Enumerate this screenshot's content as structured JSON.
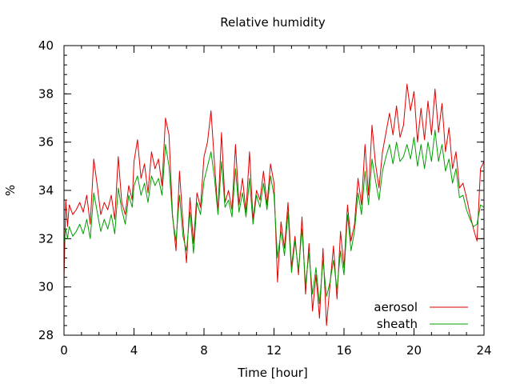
{
  "chart_data": {
    "type": "line",
    "title": "Relative humidity",
    "xlabel": "Time [hour]",
    "ylabel": "%",
    "xlim": [
      0,
      24
    ],
    "ylim": [
      28,
      40
    ],
    "xticks": [
      0,
      4,
      8,
      12,
      16,
      20,
      24
    ],
    "yticks": [
      28,
      30,
      32,
      34,
      36,
      38,
      40
    ],
    "grid": false,
    "legend_position": "bottom-right",
    "series": [
      {
        "name": "aerosol",
        "color": "#e00000",
        "x": [
          0.0,
          0.1,
          0.2,
          0.3,
          0.5,
          0.7,
          0.9,
          1.1,
          1.3,
          1.5,
          1.7,
          1.9,
          2.1,
          2.3,
          2.5,
          2.7,
          2.9,
          3.1,
          3.3,
          3.5,
          3.7,
          3.9,
          4.0,
          4.2,
          4.4,
          4.6,
          4.8,
          5.0,
          5.2,
          5.4,
          5.6,
          5.8,
          6.0,
          6.2,
          6.4,
          6.6,
          6.8,
          7.0,
          7.2,
          7.4,
          7.6,
          7.8,
          8.0,
          8.2,
          8.4,
          8.6,
          8.8,
          9.0,
          9.2,
          9.4,
          9.6,
          9.8,
          10.0,
          10.2,
          10.4,
          10.6,
          10.8,
          11.0,
          11.2,
          11.4,
          11.6,
          11.8,
          12.0,
          12.2,
          12.4,
          12.6,
          12.8,
          13.0,
          13.2,
          13.4,
          13.6,
          13.8,
          14.0,
          14.2,
          14.4,
          14.6,
          14.8,
          15.0,
          15.2,
          15.4,
          15.6,
          15.8,
          16.0,
          16.2,
          16.4,
          16.6,
          16.8,
          17.0,
          17.2,
          17.4,
          17.6,
          17.8,
          18.0,
          18.2,
          18.4,
          18.6,
          18.8,
          19.0,
          19.2,
          19.4,
          19.6,
          19.8,
          20.0,
          20.2,
          20.4,
          20.6,
          20.8,
          21.0,
          21.2,
          21.4,
          21.6,
          21.8,
          22.0,
          22.2,
          22.4,
          22.6,
          22.8,
          23.0,
          23.2,
          23.4,
          23.6,
          23.8,
          24.0
        ],
        "values": [
          30.3,
          33.6,
          32.5,
          33.4,
          33.0,
          33.2,
          33.5,
          33.1,
          33.8,
          32.6,
          35.3,
          34.2,
          33.0,
          33.5,
          33.2,
          33.8,
          32.8,
          35.4,
          33.5,
          33.0,
          34.2,
          33.6,
          35.2,
          36.1,
          34.5,
          35.1,
          33.9,
          35.6,
          34.9,
          35.3,
          34.2,
          37.0,
          36.3,
          33.0,
          31.5,
          34.8,
          32.6,
          31.0,
          33.7,
          31.8,
          33.9,
          33.3,
          35.4,
          36.0,
          37.3,
          35.1,
          33.1,
          36.4,
          33.5,
          34.0,
          33.2,
          35.9,
          33.4,
          34.5,
          33.1,
          35.6,
          32.8,
          34.0,
          33.6,
          34.8,
          33.4,
          35.1,
          34.3,
          30.2,
          32.7,
          31.6,
          33.5,
          30.8,
          32.1,
          30.5,
          32.9,
          29.7,
          31.8,
          29.0,
          30.5,
          28.7,
          31.6,
          28.4,
          30.1,
          31.7,
          29.5,
          32.3,
          30.8,
          33.4,
          31.9,
          32.6,
          34.5,
          33.4,
          35.9,
          33.8,
          36.7,
          35.1,
          34.1,
          35.6,
          36.4,
          37.2,
          36.3,
          37.5,
          36.2,
          36.7,
          38.4,
          37.3,
          38.1,
          36.0,
          37.4,
          36.1,
          37.7,
          36.3,
          38.2,
          36.4,
          37.6,
          35.6,
          36.6,
          34.9,
          35.6,
          34.1,
          34.3,
          33.7,
          33.0,
          32.4,
          31.9,
          34.9,
          35.2
        ]
      },
      {
        "name": "sheath",
        "color": "#00a000",
        "x": [
          0.0,
          0.1,
          0.2,
          0.3,
          0.5,
          0.7,
          0.9,
          1.1,
          1.3,
          1.5,
          1.7,
          1.9,
          2.1,
          2.3,
          2.5,
          2.7,
          2.9,
          3.1,
          3.3,
          3.5,
          3.7,
          3.9,
          4.0,
          4.2,
          4.4,
          4.6,
          4.8,
          5.0,
          5.2,
          5.4,
          5.6,
          5.8,
          6.0,
          6.2,
          6.4,
          6.6,
          6.8,
          7.0,
          7.2,
          7.4,
          7.6,
          7.8,
          8.0,
          8.2,
          8.4,
          8.6,
          8.8,
          9.0,
          9.2,
          9.4,
          9.6,
          9.8,
          10.0,
          10.2,
          10.4,
          10.6,
          10.8,
          11.0,
          11.2,
          11.4,
          11.6,
          11.8,
          12.0,
          12.2,
          12.4,
          12.6,
          12.8,
          13.0,
          13.2,
          13.4,
          13.6,
          13.8,
          14.0,
          14.2,
          14.4,
          14.6,
          14.8,
          15.0,
          15.2,
          15.4,
          15.6,
          15.8,
          16.0,
          16.2,
          16.4,
          16.6,
          16.8,
          17.0,
          17.2,
          17.4,
          17.6,
          17.8,
          18.0,
          18.2,
          18.4,
          18.6,
          18.8,
          19.0,
          19.2,
          19.4,
          19.6,
          19.8,
          20.0,
          20.2,
          20.4,
          20.6,
          20.8,
          21.0,
          21.2,
          21.4,
          21.6,
          21.8,
          22.0,
          22.2,
          22.4,
          22.6,
          22.8,
          23.0,
          23.2,
          23.4,
          23.6,
          23.8,
          24.0
        ],
        "values": [
          31.8,
          32.4,
          32.0,
          32.5,
          32.1,
          32.3,
          32.6,
          32.2,
          32.8,
          32.0,
          33.9,
          33.1,
          32.3,
          32.8,
          32.4,
          33.0,
          32.2,
          34.1,
          33.2,
          32.6,
          33.8,
          33.3,
          34.2,
          34.6,
          33.8,
          34.3,
          33.5,
          34.6,
          34.2,
          34.5,
          33.8,
          35.9,
          35.0,
          32.9,
          31.9,
          33.8,
          32.1,
          31.5,
          33.1,
          31.4,
          33.5,
          33.0,
          34.4,
          35.0,
          35.6,
          34.5,
          33.0,
          35.2,
          33.3,
          33.6,
          32.9,
          34.9,
          33.1,
          33.9,
          32.9,
          34.5,
          32.6,
          33.8,
          33.3,
          34.3,
          33.2,
          34.6,
          33.8,
          31.2,
          32.3,
          31.3,
          33.1,
          30.6,
          31.9,
          30.7,
          32.4,
          30.1,
          31.4,
          29.7,
          30.8,
          29.3,
          31.1,
          29.6,
          30.2,
          31.1,
          29.9,
          31.5,
          30.5,
          33.0,
          31.5,
          32.3,
          33.9,
          33.0,
          34.8,
          33.4,
          35.3,
          34.4,
          33.6,
          34.8,
          35.4,
          35.9,
          35.1,
          36.0,
          35.2,
          35.4,
          35.9,
          35.3,
          36.2,
          35.0,
          35.9,
          34.9,
          36.0,
          35.2,
          36.5,
          35.2,
          35.9,
          34.8,
          35.3,
          34.3,
          34.9,
          33.7,
          33.8,
          33.2,
          32.8,
          32.5,
          32.6,
          33.4,
          33.3
        ]
      }
    ]
  }
}
